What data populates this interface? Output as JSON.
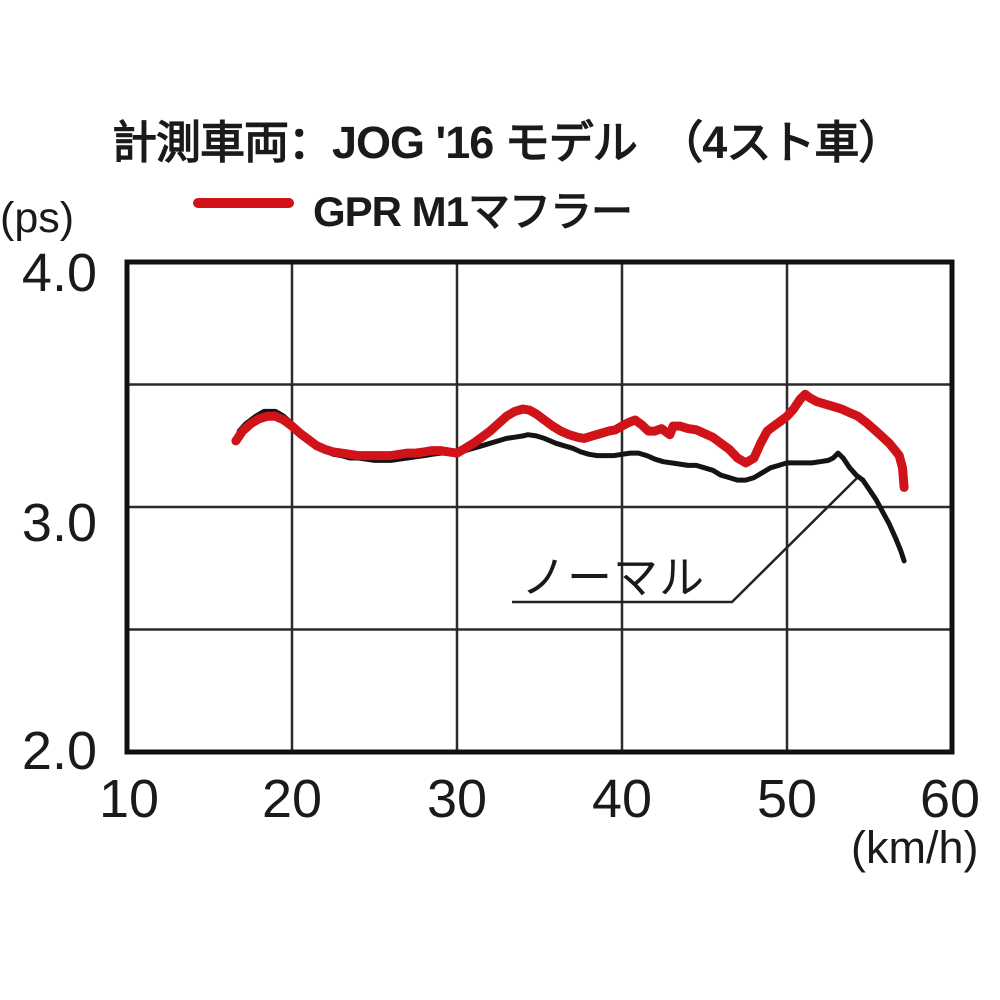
{
  "title": "計測車両：JOG '16 モデル　（4スト車）",
  "legend": {
    "label": "GPR M1マフラー",
    "color": "#d01318"
  },
  "annotation": {
    "label": "ノーマル"
  },
  "axes": {
    "y_unit": "(ps)",
    "x_unit": "(km/h)",
    "y_tick_labels": [
      "4.0",
      "3.0",
      "2.0"
    ],
    "x_tick_labels": [
      "10",
      "20",
      "30",
      "40",
      "50",
      "60"
    ]
  },
  "chart_data": {
    "type": "line",
    "title": "計測車両：JOG '16 モデル（4スト車）",
    "xlabel": "(km/h)",
    "ylabel": "(ps)",
    "xlim": [
      10,
      60
    ],
    "ylim": [
      2.0,
      4.0
    ],
    "x_ticks": [
      10,
      20,
      30,
      40,
      50,
      60
    ],
    "y_ticks_labeled": [
      4.0,
      3.0,
      2.0
    ],
    "y_gridlines": [
      2.0,
      2.5,
      3.0,
      3.5,
      4.0
    ],
    "grid": true,
    "legend_position": "top",
    "series": [
      {
        "name": "GPR M1マフラー",
        "color": "#d01318",
        "width": 9,
        "x": [
          16.6,
          17,
          17.5,
          18,
          18.5,
          19,
          19.5,
          20,
          20.5,
          21,
          21.5,
          22,
          22.5,
          23,
          23.5,
          24,
          24.5,
          25,
          25.5,
          26,
          26.5,
          27,
          27.5,
          28,
          28.5,
          29,
          29.5,
          30,
          30.5,
          31,
          31.5,
          32,
          32.5,
          33,
          33.5,
          34,
          34.4,
          34.8,
          35.3,
          35.8,
          36.3,
          36.8,
          37.3,
          37.7,
          38.2,
          38.7,
          39.2,
          39.6,
          40,
          40.4,
          40.8,
          41.2,
          41.6,
          42,
          42.4,
          42.9,
          43.1,
          43.5,
          44,
          44.5,
          45,
          45.5,
          46,
          46.5,
          47,
          47.5,
          48,
          48.4,
          48.8,
          49.2,
          49.6,
          50,
          50.4,
          50.8,
          51.1,
          51.4,
          51.8,
          52.3,
          52.8,
          53.3,
          53.8,
          54.3,
          54.8,
          55.3,
          55.8,
          56.2,
          56.5,
          56.8,
          57,
          57.1
        ],
        "y": [
          3.27,
          3.31,
          3.34,
          3.36,
          3.37,
          3.37,
          3.355,
          3.33,
          3.3,
          3.275,
          3.25,
          3.235,
          3.225,
          3.22,
          3.215,
          3.21,
          3.21,
          3.21,
          3.21,
          3.21,
          3.215,
          3.22,
          3.22,
          3.225,
          3.23,
          3.23,
          3.225,
          3.22,
          3.24,
          3.26,
          3.285,
          3.31,
          3.34,
          3.37,
          3.39,
          3.4,
          3.395,
          3.38,
          3.355,
          3.33,
          3.31,
          3.295,
          3.285,
          3.28,
          3.29,
          3.3,
          3.31,
          3.315,
          3.33,
          3.345,
          3.355,
          3.335,
          3.31,
          3.31,
          3.32,
          3.295,
          3.33,
          3.33,
          3.32,
          3.315,
          3.3,
          3.285,
          3.26,
          3.235,
          3.2,
          3.18,
          3.2,
          3.26,
          3.31,
          3.33,
          3.35,
          3.37,
          3.4,
          3.44,
          3.46,
          3.445,
          3.43,
          3.42,
          3.41,
          3.4,
          3.385,
          3.37,
          3.345,
          3.315,
          3.285,
          3.26,
          3.235,
          3.21,
          3.16,
          3.08
        ]
      },
      {
        "name": "ノーマル",
        "color": "#141414",
        "width": 5,
        "x": [
          16.8,
          17.2,
          17.8,
          18.3,
          19,
          19.5,
          20,
          20.5,
          21,
          21.5,
          22,
          22.5,
          23,
          23.5,
          24,
          24.5,
          25,
          25.5,
          26,
          26.5,
          27,
          27.5,
          28,
          28.5,
          29,
          29.5,
          30,
          30.5,
          31,
          31.5,
          32,
          32.5,
          33,
          33.5,
          34,
          34.3,
          34.8,
          35.3,
          36,
          36.5,
          37,
          37.5,
          38,
          38.5,
          39,
          39.5,
          40,
          40.5,
          41,
          41.5,
          42,
          42.5,
          43,
          43.5,
          44,
          44.5,
          45,
          45.5,
          46,
          46.5,
          47,
          47.5,
          48,
          48.5,
          49,
          49.5,
          50,
          50.5,
          51,
          51.5,
          52,
          52.5,
          52.8,
          53.1,
          53.4,
          53.8,
          54.2,
          54.6,
          55,
          55.4,
          55.8,
          56.2,
          56.6,
          56.9,
          57.1
        ],
        "y": [
          3.31,
          3.34,
          3.37,
          3.39,
          3.39,
          3.37,
          3.34,
          3.31,
          3.28,
          3.25,
          3.23,
          3.215,
          3.21,
          3.2,
          3.2,
          3.195,
          3.19,
          3.19,
          3.19,
          3.195,
          3.2,
          3.205,
          3.21,
          3.215,
          3.22,
          3.22,
          3.22,
          3.23,
          3.24,
          3.25,
          3.26,
          3.27,
          3.28,
          3.285,
          3.29,
          3.295,
          3.29,
          3.28,
          3.26,
          3.25,
          3.24,
          3.225,
          3.215,
          3.21,
          3.21,
          3.21,
          3.215,
          3.22,
          3.22,
          3.21,
          3.195,
          3.185,
          3.18,
          3.175,
          3.17,
          3.17,
          3.16,
          3.15,
          3.13,
          3.12,
          3.11,
          3.11,
          3.12,
          3.14,
          3.16,
          3.17,
          3.18,
          3.18,
          3.18,
          3.18,
          3.185,
          3.19,
          3.2,
          3.22,
          3.2,
          3.16,
          3.13,
          3.11,
          3.07,
          3.03,
          2.98,
          2.93,
          2.87,
          2.82,
          2.78
        ]
      }
    ],
    "annotations": [
      {
        "text": "ノーマル",
        "points_to_series": "ノーマル"
      }
    ]
  }
}
